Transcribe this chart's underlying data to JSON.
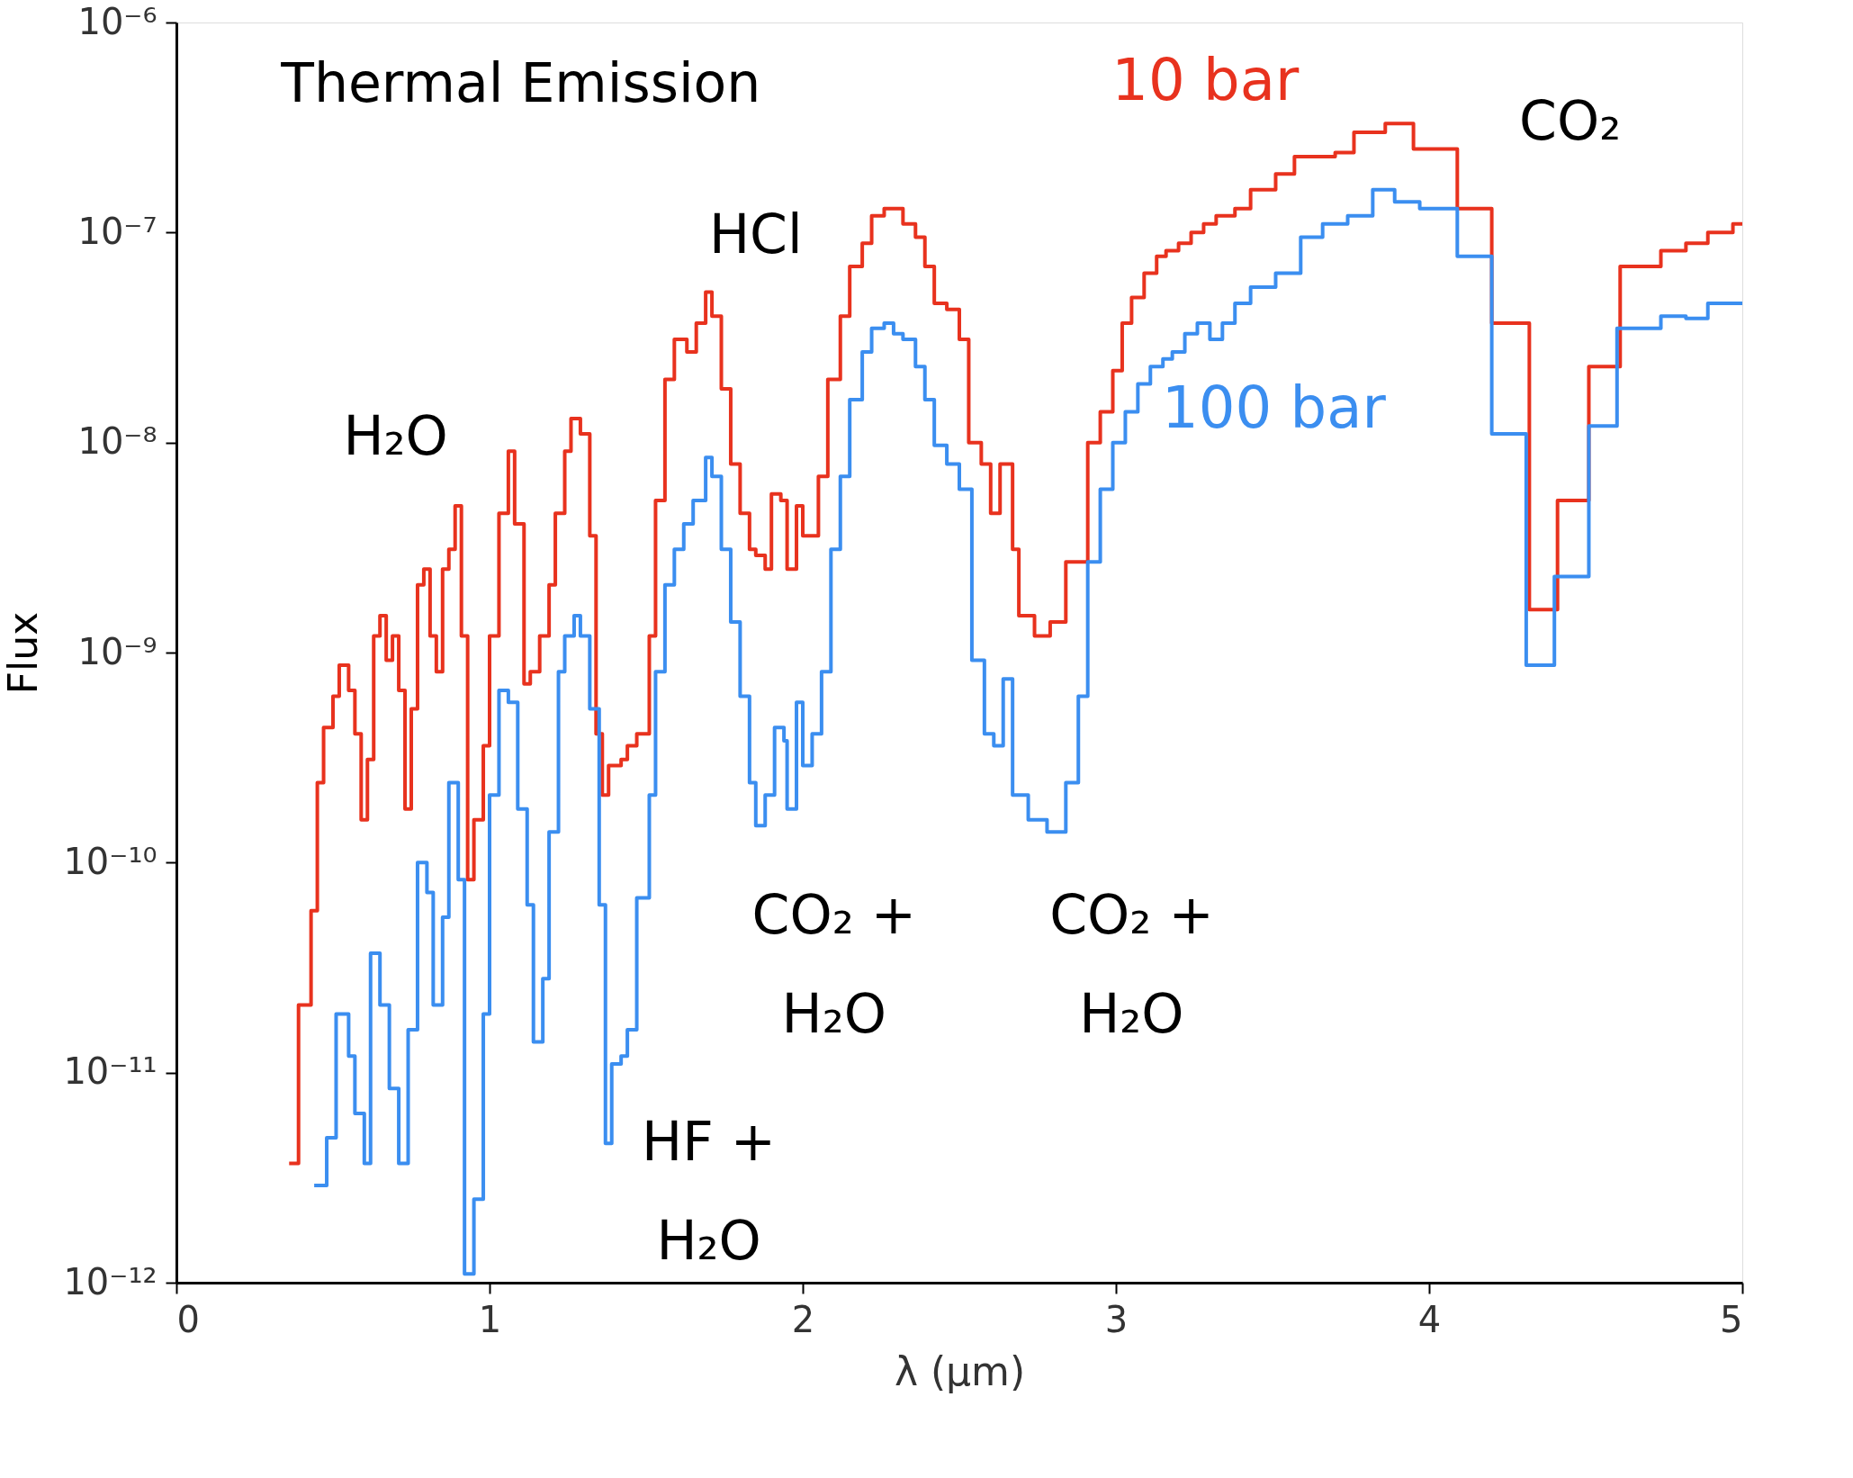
{
  "chart_data": {
    "type": "step",
    "xlabel": "λ (μm)",
    "ylabel": "Flux",
    "log": "y",
    "grid": false,
    "legend": false,
    "line_style": "solid",
    "marker": "none",
    "xlim": [
      0,
      5
    ],
    "xticks": [
      0,
      1,
      2,
      3,
      4,
      5
    ],
    "ylim": [
      1e-12,
      1e-06
    ],
    "yticks": [
      {
        "value": 1e-12,
        "label": "10⁻¹²"
      },
      {
        "value": 1e-11,
        "label": "10⁻¹¹"
      },
      {
        "value": 1e-10,
        "label": "10⁻¹⁰"
      },
      {
        "value": 1e-09,
        "label": "10⁻⁹"
      },
      {
        "value": 1e-08,
        "label": "10⁻⁸"
      },
      {
        "value": 1e-07,
        "label": "10⁻⁷"
      },
      {
        "value": 1e-06,
        "label": "10⁻⁶"
      }
    ],
    "annotations": [
      "Thermal Emission",
      "H₂O",
      "HCl",
      "CO₂",
      "CO₂ +\nH₂O",
      "CO₂ +\nH₂O",
      "HF +\nH₂O"
    ],
    "series": [
      {
        "name": "10 bar",
        "color": "#e8321e",
        "x": [
          0.36,
          0.39,
          0.43,
          0.45,
          0.47,
          0.5,
          0.52,
          0.55,
          0.57,
          0.59,
          0.61,
          0.63,
          0.65,
          0.67,
          0.69,
          0.71,
          0.73,
          0.75,
          0.77,
          0.79,
          0.81,
          0.83,
          0.85,
          0.87,
          0.89,
          0.91,
          0.93,
          0.95,
          0.98,
          1.0,
          1.03,
          1.06,
          1.08,
          1.11,
          1.13,
          1.16,
          1.19,
          1.21,
          1.24,
          1.26,
          1.29,
          1.32,
          1.34,
          1.36,
          1.38,
          1.42,
          1.44,
          1.47,
          1.51,
          1.53,
          1.56,
          1.59,
          1.63,
          1.66,
          1.69,
          1.71,
          1.74,
          1.77,
          1.8,
          1.83,
          1.85,
          1.88,
          1.9,
          1.93,
          1.95,
          1.98,
          2.0,
          2.03,
          2.05,
          2.08,
          2.12,
          2.15,
          2.19,
          2.22,
          2.26,
          2.29,
          2.32,
          2.36,
          2.39,
          2.42,
          2.46,
          2.5,
          2.53,
          2.57,
          2.6,
          2.63,
          2.67,
          2.69,
          2.74,
          2.79,
          2.84,
          2.88,
          2.91,
          2.95,
          2.99,
          3.02,
          3.05,
          3.09,
          3.13,
          3.16,
          3.2,
          3.24,
          3.28,
          3.32,
          3.38,
          3.43,
          3.51,
          3.57,
          3.64,
          3.7,
          3.76,
          3.86,
          3.95,
          4.09,
          4.2,
          4.32,
          4.41,
          4.51,
          4.61,
          4.74,
          4.82,
          4.89,
          4.97,
          5.0
        ],
        "values": [
          3.7e-12,
          2.1e-11,
          5.9e-11,
          2.4e-10,
          4.4e-10,
          6.2e-10,
          8.7e-10,
          6.6e-10,
          4.1e-10,
          1.6e-10,
          3.1e-10,
          1.2e-09,
          1.5e-09,
          9.2e-10,
          1.2e-09,
          6.6e-10,
          1.8e-10,
          5.4e-10,
          2.1e-09,
          2.5e-09,
          1.2e-09,
          8.1e-10,
          2.5e-09,
          3.1e-09,
          5e-09,
          1.2e-09,
          8.3e-11,
          1.6e-10,
          3.6e-10,
          1.2e-09,
          4.6e-09,
          9.1e-09,
          4.1e-09,
          7.1e-10,
          8.1e-10,
          1.2e-09,
          2.1e-09,
          4.6e-09,
          9.1e-09,
          1.3e-08,
          1.1e-08,
          3.6e-09,
          4.1e-10,
          2.1e-10,
          2.9e-10,
          3.1e-10,
          3.6e-10,
          4.1e-10,
          1.2e-09,
          5.3e-09,
          2e-08,
          3.1e-08,
          2.7e-08,
          3.7e-08,
          5.2e-08,
          4e-08,
          1.8e-08,
          7.9e-09,
          4.6e-09,
          3.1e-09,
          2.9e-09,
          2.5e-09,
          5.7e-09,
          5.3e-09,
          2.5e-09,
          5e-09,
          3.6e-09,
          3.6e-09,
          6.9e-09,
          2e-08,
          4e-08,
          6.9e-08,
          8.9e-08,
          1.2e-07,
          1.3e-07,
          1.3e-07,
          1.1e-07,
          9.5e-08,
          6.9e-08,
          4.6e-08,
          4.3e-08,
          3.1e-08,
          1e-08,
          7.9e-09,
          4.6e-09,
          7.9e-09,
          3.1e-09,
          1.5e-09,
          1.2e-09,
          1.4e-09,
          2.7e-09,
          2.7e-09,
          1e-08,
          1.4e-08,
          2.2e-08,
          3.7e-08,
          4.9e-08,
          6.4e-08,
          7.7e-08,
          8.2e-08,
          8.9e-08,
          1e-07,
          1.1e-07,
          1.2e-07,
          1.3e-07,
          1.6e-07,
          1.9e-07,
          2.3e-07,
          2.3e-07,
          2.4e-07,
          3e-07,
          3.3e-07,
          2.5e-07,
          1.3e-07,
          3.7e-08,
          1.6e-09,
          5.3e-09,
          2.3e-08,
          6.9e-08,
          8.2e-08,
          8.9e-08,
          1e-07,
          1.1e-07,
          1.1e-07
        ]
      },
      {
        "name": "100 bar",
        "color": "#3b8ef0",
        "x": [
          0.44,
          0.48,
          0.51,
          0.55,
          0.57,
          0.6,
          0.62,
          0.65,
          0.68,
          0.71,
          0.74,
          0.77,
          0.8,
          0.82,
          0.85,
          0.87,
          0.9,
          0.92,
          0.95,
          0.98,
          1.0,
          1.03,
          1.06,
          1.09,
          1.12,
          1.14,
          1.17,
          1.19,
          1.22,
          1.24,
          1.27,
          1.29,
          1.32,
          1.35,
          1.37,
          1.39,
          1.42,
          1.44,
          1.47,
          1.51,
          1.53,
          1.56,
          1.59,
          1.62,
          1.65,
          1.69,
          1.71,
          1.74,
          1.77,
          1.8,
          1.83,
          1.85,
          1.88,
          1.91,
          1.94,
          1.95,
          1.98,
          2.0,
          2.03,
          2.06,
          2.09,
          2.12,
          2.15,
          2.19,
          2.22,
          2.26,
          2.29,
          2.32,
          2.36,
          2.39,
          2.42,
          2.46,
          2.5,
          2.54,
          2.58,
          2.61,
          2.64,
          2.67,
          2.72,
          2.78,
          2.84,
          2.88,
          2.91,
          2.95,
          2.99,
          3.03,
          3.07,
          3.11,
          3.15,
          3.18,
          3.22,
          3.26,
          3.3,
          3.34,
          3.38,
          3.43,
          3.51,
          3.59,
          3.66,
          3.74,
          3.82,
          3.89,
          3.97,
          4.09,
          4.2,
          4.31,
          4.4,
          4.51,
          4.6,
          4.74,
          4.82,
          4.89,
          5.0
        ],
        "values": [
          2.9e-12,
          4.9e-12,
          1.9e-11,
          1.2e-11,
          6.4e-12,
          3.7e-12,
          3.7e-11,
          2.1e-11,
          8.4e-12,
          3.7e-12,
          1.6e-11,
          1e-10,
          7.2e-11,
          2.1e-11,
          5.5e-11,
          2.4e-10,
          8.3e-11,
          1.1e-12,
          2.5e-12,
          1.9e-11,
          2.1e-10,
          6.6e-10,
          5.8e-10,
          1.8e-10,
          6.3e-11,
          1.4e-11,
          2.8e-11,
          1.4e-10,
          8.1e-10,
          1.2e-09,
          1.5e-09,
          1.2e-09,
          5.4e-10,
          6.3e-11,
          4.6e-12,
          1.1e-11,
          1.2e-11,
          1.6e-11,
          6.8e-11,
          2.1e-10,
          8.1e-10,
          2.1e-09,
          3.1e-09,
          4.1e-09,
          5.3e-09,
          8.5e-09,
          6.9e-09,
          3.1e-09,
          1.4e-09,
          6.2e-10,
          2.4e-10,
          1.5e-10,
          2.1e-10,
          4.4e-10,
          3.8e-10,
          1.8e-10,
          5.8e-10,
          2.9e-10,
          4.1e-10,
          8.1e-10,
          3.1e-09,
          6.9e-09,
          1.6e-08,
          2.7e-08,
          3.5e-08,
          3.7e-08,
          3.3e-08,
          3.1e-08,
          2.3e-08,
          1.6e-08,
          9.7e-09,
          7.9e-09,
          6e-09,
          9.2e-10,
          4.1e-10,
          3.6e-10,
          7.5e-10,
          2.1e-10,
          1.6e-10,
          1.4e-10,
          2.4e-10,
          6.2e-10,
          2.7e-09,
          6e-09,
          1e-08,
          1.4e-08,
          1.9e-08,
          2.3e-08,
          2.5e-08,
          2.7e-08,
          3.3e-08,
          3.7e-08,
          3.1e-08,
          3.7e-08,
          4.6e-08,
          5.5e-08,
          6.4e-08,
          9.5e-08,
          1.1e-07,
          1.2e-07,
          1.6e-07,
          1.4e-07,
          1.3e-07,
          7.7e-08,
          1.1e-08,
          8.7e-10,
          2.3e-09,
          1.2e-08,
          3.5e-08,
          4e-08,
          3.9e-08,
          4.6e-08,
          4.6e-08
        ]
      }
    ]
  }
}
